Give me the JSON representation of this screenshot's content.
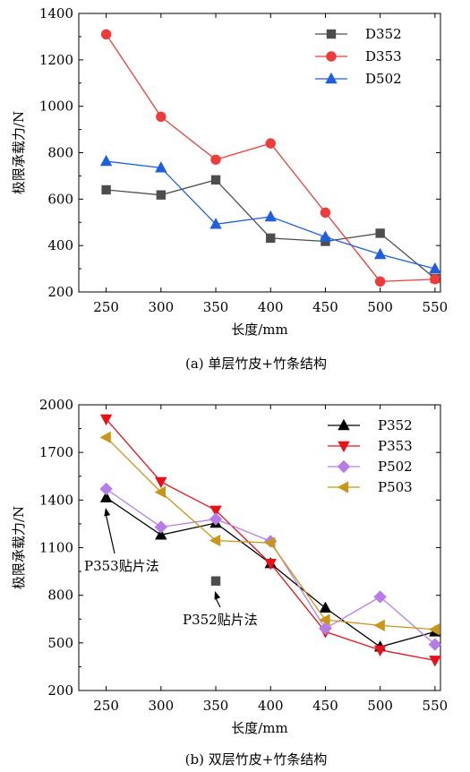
{
  "chart_data": [
    {
      "type": "line",
      "caption": "(a) 单层竹皮+竹条结构",
      "xlabel": "长度/mm",
      "ylabel": "极限承载力/N",
      "x": [
        250,
        300,
        350,
        400,
        450,
        500,
        550
      ],
      "xlim": [
        225,
        555
      ],
      "ylim": [
        200,
        1400
      ],
      "xticks": [
        "250",
        "300",
        "350",
        "400",
        "450",
        "500",
        "550"
      ],
      "yticks": [
        "200",
        "400",
        "600",
        "800",
        "1000",
        "1200",
        "1400"
      ],
      "grid": false,
      "legend_position": "top-right",
      "series": [
        {
          "name": "D352",
          "color": "#4d4d4d",
          "marker": "square",
          "values": [
            640,
            618,
            683,
            432,
            418,
            453,
            258
          ]
        },
        {
          "name": "D353",
          "color": "#ee3b3b",
          "marker": "circle",
          "values": [
            1310,
            955,
            770,
            840,
            542,
            245,
            255
          ]
        },
        {
          "name": "D502",
          "color": "#1f5fdc",
          "marker": "triangle-up",
          "values": [
            763,
            735,
            492,
            524,
            437,
            362,
            300
          ]
        }
      ]
    },
    {
      "type": "line",
      "caption": "(b) 双层竹皮+竹条结构",
      "xlabel": "长度/mm",
      "ylabel": "极限承载力/N",
      "x": [
        250,
        300,
        350,
        400,
        450,
        500,
        550
      ],
      "xlim": [
        225,
        555
      ],
      "ylim": [
        200,
        2000
      ],
      "xticks": [
        "250",
        "300",
        "350",
        "400",
        "450",
        "500",
        "550"
      ],
      "yticks": [
        "200",
        "500",
        "800",
        "1100",
        "1400",
        "1700",
        "2000"
      ],
      "grid": false,
      "legend_position": "top-right",
      "series": [
        {
          "name": "P352",
          "color": "#000000",
          "marker": "triangle-up",
          "values": [
            1415,
            1180,
            1255,
            1000,
            720,
            475,
            570
          ]
        },
        {
          "name": "P353",
          "color": "#e8111a",
          "marker": "triangle-down",
          "values": [
            1910,
            1515,
            1335,
            1000,
            570,
            455,
            390
          ]
        },
        {
          "name": "P502",
          "color": "#b77de6",
          "marker": "diamond",
          "values": [
            1470,
            1230,
            1280,
            1140,
            590,
            790,
            490
          ]
        },
        {
          "name": "P503",
          "color": "#c8961a",
          "marker": "triangle-left",
          "values": [
            1795,
            1450,
            1145,
            1130,
            645,
            610,
            585
          ]
        }
      ],
      "extra_points": [
        {
          "x": 350,
          "y": 890,
          "marker": "square",
          "color": "#4d4d4d"
        }
      ],
      "annotations": [
        {
          "text": "P353贴片法",
          "x": 250,
          "y": 1415
        },
        {
          "text": "P352贴片法",
          "x": 350,
          "y": 890
        }
      ]
    }
  ]
}
